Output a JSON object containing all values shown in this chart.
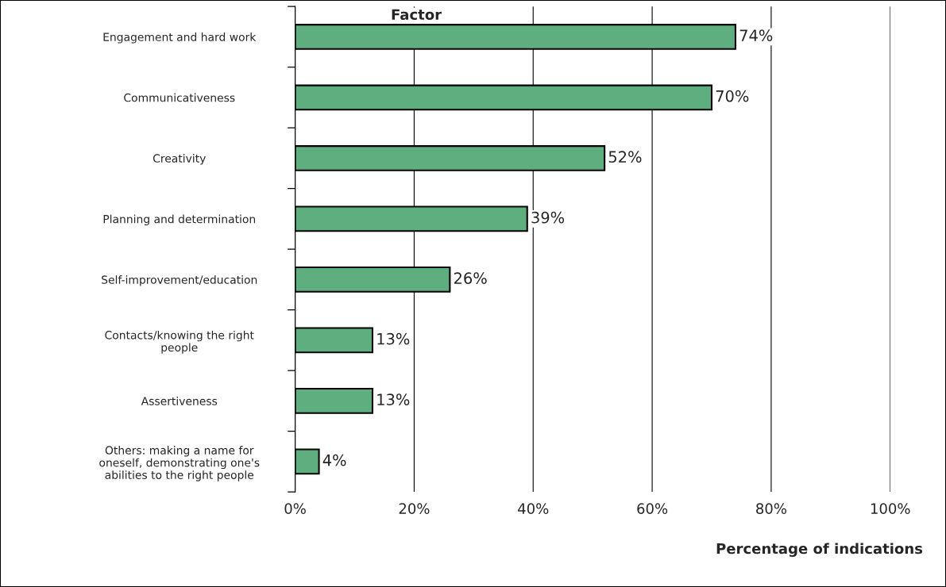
{
  "chart_data": {
    "type": "bar",
    "orientation": "horizontal",
    "ylabel": "Factor",
    "xlabel": "Percentage of indications",
    "categories": [
      "Engagement and hard work",
      "Communicativeness",
      "Creativity",
      "Planning and determination",
      "Self-improvement/education",
      "Contacts/knowing the right\npeople",
      "Assertiveness",
      "Others: making a name for\noneself, demonstrating one's\nabilities to the right people"
    ],
    "values": [
      74,
      70,
      52,
      39,
      26,
      13,
      13,
      4
    ],
    "value_labels": [
      "74%",
      "70%",
      "52%",
      "39%",
      "26%",
      "13%",
      "13%",
      "4%"
    ],
    "color": "#5fae80",
    "xlim": [
      0,
      100
    ],
    "xticks": [
      {
        "value": 0,
        "label": "0%"
      },
      {
        "value": 20,
        "label": "20%"
      },
      {
        "value": 40,
        "label": "40%"
      },
      {
        "value": 60,
        "label": "60%"
      },
      {
        "value": 80,
        "label": "80%"
      },
      {
        "value": 100,
        "label": "100%"
      }
    ],
    "grid": "x",
    "legend": false
  }
}
